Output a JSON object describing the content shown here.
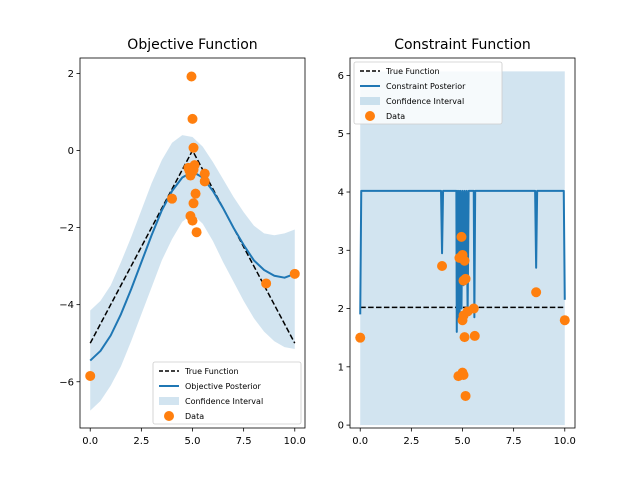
{
  "chart_data": [
    {
      "type": "line",
      "title": "Objective Function",
      "xlabel": "",
      "ylabel": "",
      "xlim": [
        -0.5,
        10.5
      ],
      "ylim": [
        -7.2,
        2.4
      ],
      "xticks": [
        0,
        2.5,
        5,
        7.5,
        10
      ],
      "xtick_labels": [
        "0.0",
        "2.5",
        "5.0",
        "7.5",
        "10.0"
      ],
      "yticks": [
        -6,
        -4,
        -2,
        0,
        2
      ],
      "ytick_labels": [
        "−6",
        "−4",
        "−2",
        "0",
        "2"
      ],
      "legend": {
        "position": "lower-right",
        "entries": [
          "True Function",
          "Objective Posterior",
          "Confidence Interval",
          "Data"
        ]
      },
      "series": [
        {
          "name": "True Function",
          "style": "dashed",
          "color": "#000000",
          "x": [
            0,
            5,
            10
          ],
          "y": [
            -5,
            0,
            -5
          ]
        },
        {
          "name": "Objective Posterior",
          "style": "solid",
          "color": "#1f77b4",
          "x": [
            0,
            0.5,
            1,
            1.5,
            2,
            2.5,
            3,
            3.5,
            4,
            4.5,
            5,
            5.5,
            6,
            6.5,
            7,
            7.5,
            8,
            8.5,
            9,
            9.5,
            10
          ],
          "y": [
            -5.45,
            -5.2,
            -4.8,
            -4.25,
            -3.6,
            -2.9,
            -2.2,
            -1.55,
            -1.05,
            -0.7,
            -0.55,
            -0.7,
            -1.05,
            -1.5,
            -2.0,
            -2.45,
            -2.85,
            -3.1,
            -3.25,
            -3.3,
            -3.2
          ]
        },
        {
          "name": "Confidence Interval",
          "type": "area",
          "color": "#1f77b4",
          "x": [
            0,
            0.5,
            1,
            1.5,
            2,
            2.5,
            3,
            3.5,
            4,
            4.5,
            5,
            5.5,
            6,
            6.5,
            7,
            7.5,
            8,
            8.5,
            9,
            9.5,
            10
          ],
          "lower": [
            -6.75,
            -6.5,
            -6.1,
            -5.6,
            -4.95,
            -4.25,
            -3.55,
            -2.85,
            -2.3,
            -1.85,
            -1.65,
            -1.9,
            -2.35,
            -2.9,
            -3.4,
            -3.9,
            -4.35,
            -4.7,
            -4.95,
            -5.1,
            -5.15
          ],
          "upper": [
            -4.15,
            -3.9,
            -3.5,
            -2.9,
            -2.25,
            -1.55,
            -0.85,
            -0.25,
            0.2,
            0.4,
            0.35,
            0.1,
            -0.3,
            -0.75,
            -1.2,
            -1.6,
            -1.95,
            -2.15,
            -2.2,
            -2.15,
            -2.05
          ]
        },
        {
          "name": "Data",
          "type": "scatter",
          "color": "#ff7f0e",
          "x": [
            0,
            4,
            4.8,
            4.9,
            4.95,
            5,
            5.05,
            5.1,
            5.15,
            5.2,
            4.9,
            5.0,
            5.05,
            5.6,
            5.6,
            4.85,
            5.0,
            5.05,
            8.6,
            10
          ],
          "y": [
            -5.85,
            -1.25,
            -0.45,
            -0.65,
            1.92,
            0.82,
            0.07,
            -0.38,
            -1.12,
            -2.12,
            -1.7,
            -1.82,
            -1.37,
            -0.6,
            -0.8,
            -0.52,
            -0.55,
            -0.5,
            -3.45,
            -3.2
          ]
        }
      ]
    },
    {
      "type": "line",
      "title": "Constraint Function",
      "xlabel": "",
      "ylabel": "",
      "xlim": [
        -0.5,
        10.5
      ],
      "ylim": [
        -0.05,
        6.3
      ],
      "xticks": [
        0,
        2.5,
        5,
        7.5,
        10
      ],
      "xtick_labels": [
        "0.0",
        "2.5",
        "5.0",
        "7.5",
        "10.0"
      ],
      "yticks": [
        0,
        1,
        2,
        3,
        4,
        5,
        6
      ],
      "ytick_labels": [
        "0",
        "1",
        "2",
        "3",
        "4",
        "5",
        "6"
      ],
      "legend": {
        "position": "upper-left",
        "entries": [
          "True Function",
          "Constraint Posterior",
          "Confidence Interval",
          "Data"
        ]
      },
      "series": [
        {
          "name": "True Function",
          "style": "dashed",
          "color": "#000000",
          "x": [
            0,
            10
          ],
          "y": [
            2.02,
            2.02
          ]
        },
        {
          "name": "Constraint Posterior",
          "style": "solid",
          "color": "#1f77b4",
          "x": [
            0,
            0.05,
            0.1,
            3.95,
            4.0,
            4.05,
            4.7,
            4.72,
            4.74,
            4.78,
            4.82,
            4.86,
            4.9,
            4.95,
            5.0,
            5.05,
            5.1,
            5.15,
            5.2,
            5.25,
            5.3,
            5.55,
            5.58,
            5.62,
            8.55,
            8.6,
            8.65,
            9.95,
            10
          ],
          "y": [
            1.9,
            4.02,
            4.02,
            4.02,
            2.95,
            4.02,
            4.02,
            1.6,
            4.02,
            1.8,
            4.02,
            1.8,
            4.02,
            2.0,
            4.02,
            2.4,
            4.02,
            2.5,
            4.02,
            1.9,
            4.02,
            4.02,
            1.85,
            4.02,
            4.02,
            2.7,
            4.02,
            4.02,
            2.15
          ]
        },
        {
          "name": "Confidence Interval",
          "type": "area",
          "color": "#1f77b4",
          "x": [
            0,
            10
          ],
          "lower": [
            0,
            0
          ],
          "upper": [
            6.07,
            6.07
          ]
        },
        {
          "name": "Data",
          "type": "scatter",
          "color": "#ff7f0e",
          "x": [
            0,
            4,
            4.8,
            4.85,
            4.95,
            5.0,
            5.05,
            5.1,
            5.15,
            5.25,
            5.0,
            5.05,
            5.1,
            5.55,
            5.6,
            5.0,
            5.05,
            5.15,
            8.6,
            10
          ],
          "y": [
            1.5,
            2.73,
            0.84,
            2.87,
            3.23,
            2.92,
            2.48,
            2.82,
            2.51,
            1.95,
            1.8,
            1.88,
            1.51,
            2.0,
            1.53,
            0.9,
            0.86,
            0.5,
            2.28,
            1.8
          ]
        }
      ]
    }
  ]
}
